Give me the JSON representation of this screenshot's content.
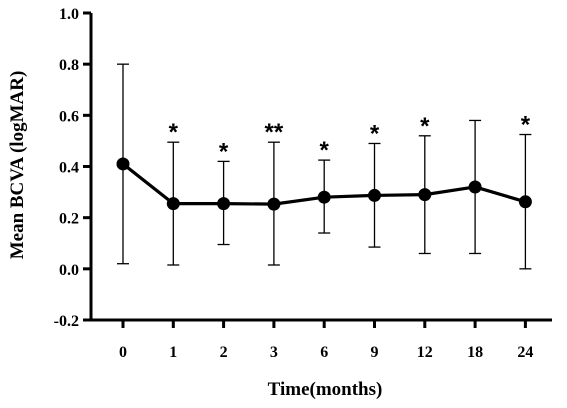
{
  "chart_data": {
    "type": "line",
    "title": "",
    "xlabel": "Time(months)",
    "ylabel": "Mean BCVA (logMAR)",
    "categories": [
      "0",
      "1",
      "2",
      "3",
      "6",
      "9",
      "12",
      "18",
      "24"
    ],
    "ylim": [
      -0.2,
      1.0
    ],
    "yticks": [
      "-0.2",
      "0.0",
      "0.2",
      "0.4",
      "0.6",
      "0.8",
      "1.0"
    ],
    "series": [
      {
        "values": [
          0.41,
          0.255,
          0.255,
          0.253,
          0.28,
          0.287,
          0.29,
          0.32,
          0.262
        ],
        "error_upper": [
          0.8,
          0.495,
          0.42,
          0.495,
          0.425,
          0.49,
          0.52,
          0.58,
          0.525
        ],
        "error_lower": [
          0.02,
          0.015,
          0.095,
          0.015,
          0.14,
          0.085,
          0.06,
          0.06,
          0.0
        ],
        "significance": [
          "",
          "*",
          "*",
          "**",
          "*",
          "*",
          "*",
          "",
          "*"
        ]
      }
    ],
    "grid": false,
    "legend": "none",
    "color": "#000000"
  }
}
